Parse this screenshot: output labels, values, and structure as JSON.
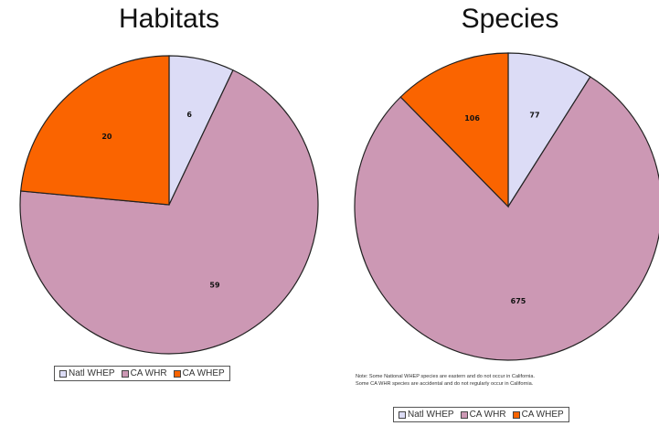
{
  "chart_data": [
    {
      "type": "pie",
      "title": "Habitats",
      "categories": [
        "Natl WHEP",
        "CA WHR",
        "CA WHEP"
      ],
      "values": [
        6,
        59,
        20
      ],
      "colors": [
        "#dcdcf6",
        "#cc98b4",
        "#fa6400"
      ],
      "legend": "bottom"
    },
    {
      "type": "pie",
      "title": "Species",
      "categories": [
        "Natl WHEP",
        "CA WHR",
        "CA WHEP"
      ],
      "values": [
        77,
        675,
        106
      ],
      "colors": [
        "#dcdcf6",
        "#cc98b4",
        "#fa6400"
      ],
      "legend": "bottom",
      "note": [
        "Note: Some National WHEP species are eastern and do not occur in California.",
        "Some CA WHR species are accidental and do not regularly occur in California."
      ]
    }
  ]
}
